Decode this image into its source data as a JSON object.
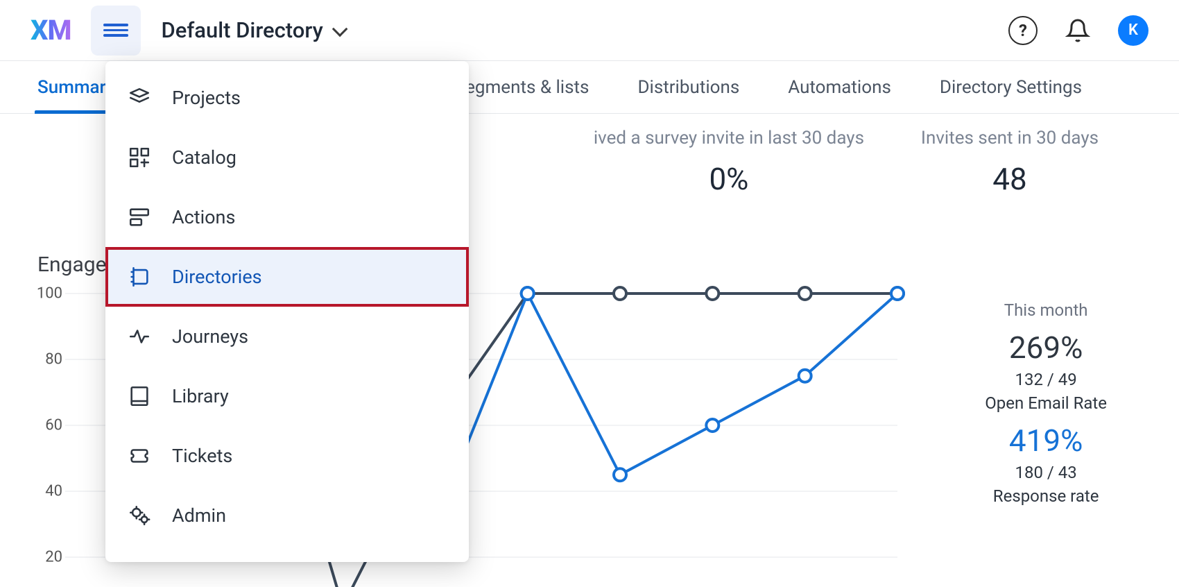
{
  "header": {
    "logo_text": "XM",
    "directory_label": "Default Directory",
    "avatar_initial": "K"
  },
  "tabs": [
    {
      "label": "Summary",
      "active": true
    },
    {
      "label": "Segments & lists",
      "active": false
    },
    {
      "label": "Distributions",
      "active": false
    },
    {
      "label": "Automations",
      "active": false
    },
    {
      "label": "Directory Settings",
      "active": false
    }
  ],
  "tabs_gap_start": 620,
  "menu": [
    {
      "label": "Projects",
      "icon": "projects-icon",
      "highlight": false
    },
    {
      "label": "Catalog",
      "icon": "catalog-icon",
      "highlight": false
    },
    {
      "label": "Actions",
      "icon": "actions-icon",
      "highlight": false
    },
    {
      "label": "Directories",
      "icon": "directories-icon",
      "highlight": true
    },
    {
      "label": "Journeys",
      "icon": "journeys-icon",
      "highlight": false
    },
    {
      "label": "Library",
      "icon": "library-icon",
      "highlight": false
    },
    {
      "label": "Tickets",
      "icon": "tickets-icon",
      "highlight": false
    },
    {
      "label": "Admin",
      "icon": "admin-icon",
      "highlight": false
    }
  ],
  "stats": {
    "survey_pct": {
      "label": "ived a survey invite in last 30 days",
      "value": "0%"
    },
    "invites": {
      "label": "Invites sent in 30 days",
      "value": "48"
    }
  },
  "engagement": {
    "title_partial": "Engage",
    "y_ticks": [
      100,
      80,
      60,
      40,
      20
    ],
    "y_min": 20,
    "y_max": 100,
    "x_count": 9,
    "series": [
      {
        "name": "open_email_rate",
        "color": "#3c4a5b",
        "marker_fill": "#ffffff",
        "values": [
          null,
          null,
          100,
          5,
          60,
          100,
          100,
          100,
          100,
          100
        ]
      },
      {
        "name": "response_rate",
        "color": "#1672d6",
        "marker_fill": "#ffffff",
        "values": [
          null,
          null,
          null,
          null,
          30,
          100,
          45,
          60,
          75,
          100
        ]
      }
    ],
    "line_width": 4,
    "marker_radius": 9,
    "marker_stroke": 4,
    "grid_color": "#e5e7eb",
    "background": "#ffffff",
    "side": {
      "period": "This month",
      "metric1_value": "269%",
      "metric1_ratio": "132 / 49",
      "metric1_label": "Open Email Rate",
      "metric2_value": "419%",
      "metric2_ratio": "180 / 43",
      "metric2_label": "Response rate"
    }
  },
  "colors": {
    "primary_blue": "#1672d6",
    "active_tab": "#0b6bd1",
    "hamburger_bg": "#eef2fb",
    "hamburger_fg": "#1f5fd1",
    "highlight_border": "#b7172b",
    "highlight_bg": "#ecf2fc",
    "text": "#1f2937",
    "muted": "#7b8493"
  }
}
